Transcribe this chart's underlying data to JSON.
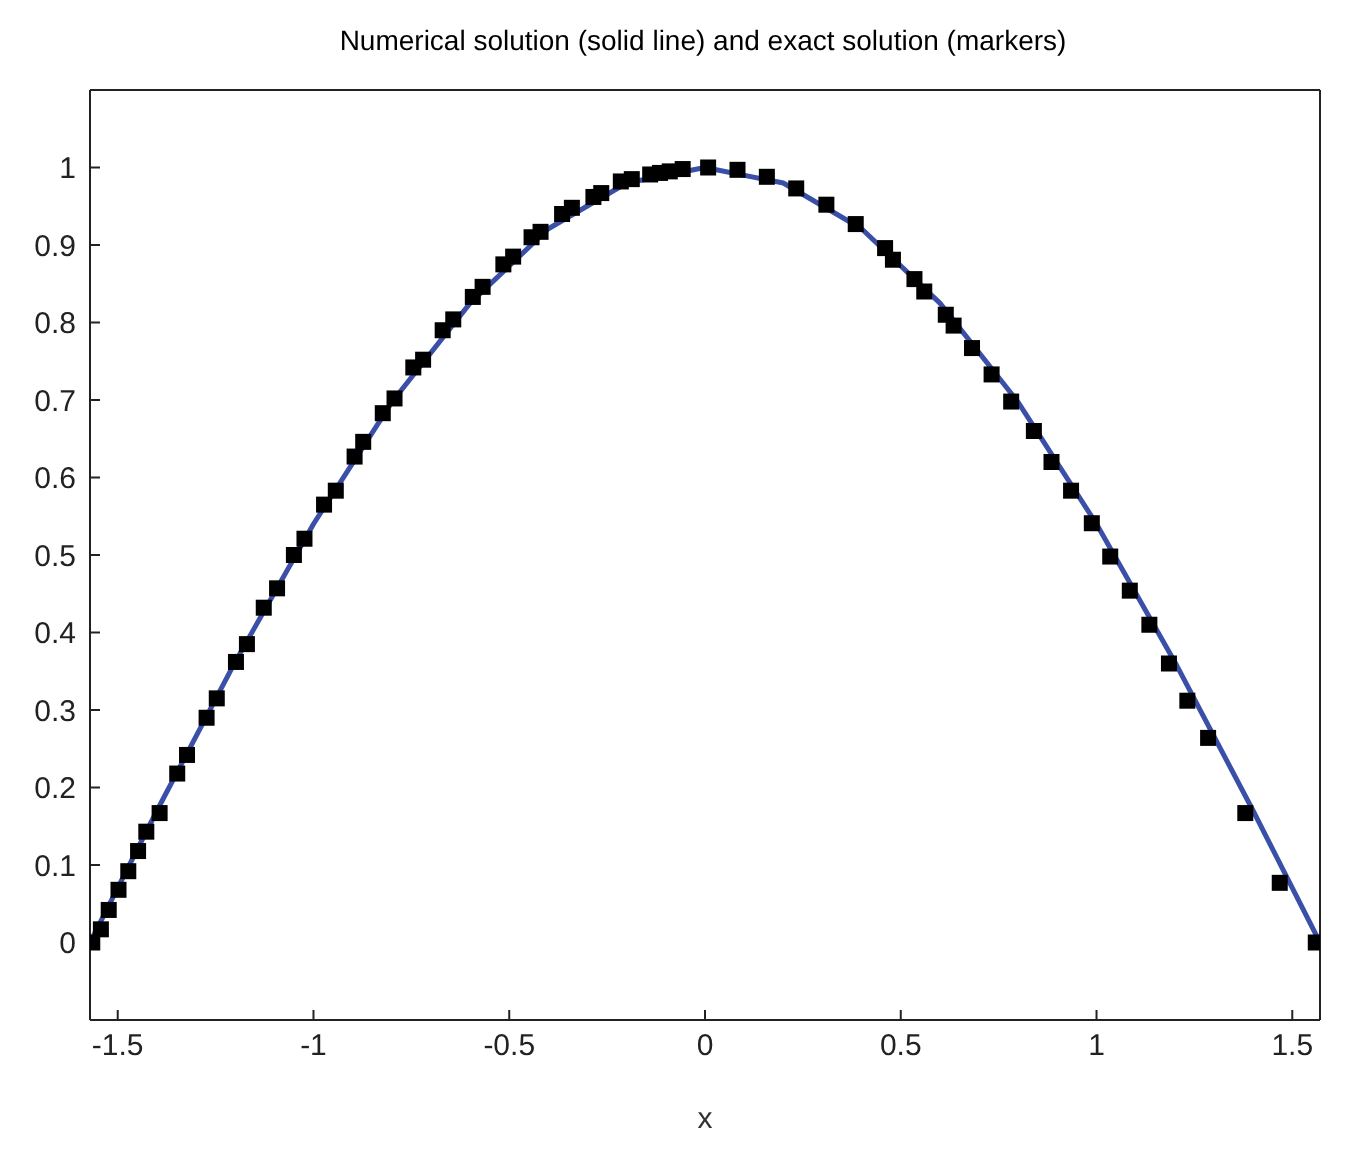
{
  "chart_data": {
    "type": "line",
    "title": "Numerical solution (solid line) and exact solution (markers)",
    "xlabel": "x",
    "xlim": [
      -1.5708,
      1.5708
    ],
    "xticks": [
      -1.5,
      -1,
      -0.5,
      0,
      0.5,
      1,
      1.5
    ],
    "ylim": [
      -0.1,
      1.1
    ],
    "yticks": [
      0,
      0.1,
      0.2,
      0.3,
      0.4,
      0.5,
      0.6,
      0.7,
      0.8,
      0.9,
      1
    ],
    "series": [
      {
        "color": "#3a4fa8",
        "line_style": "solid",
        "x": [
          -1.5708,
          -1.4,
          -1.2,
          -1.0,
          -0.8,
          -0.6,
          -0.4,
          -0.2,
          0,
          0.2,
          0.4,
          0.6,
          0.8,
          1.0,
          1.2,
          1.4,
          1.5708
        ],
        "values": [
          0,
          0.17,
          0.362,
          0.54,
          0.697,
          0.825,
          0.921,
          0.98,
          1,
          0.98,
          0.921,
          0.825,
          0.697,
          0.54,
          0.362,
          0.17,
          0
        ]
      },
      {
        "type": "scatter",
        "color": "#000000",
        "marker": "square",
        "x": [
          -1.565,
          -1.543,
          -1.523,
          -1.498,
          -1.473,
          -1.448,
          -1.427,
          -1.393,
          -1.348,
          -1.323,
          -1.273,
          -1.247,
          -1.198,
          -1.17,
          -1.127,
          -1.093,
          -1.05,
          -1.023,
          -0.973,
          -0.943,
          -0.895,
          -0.873,
          -0.823,
          -0.793,
          -0.745,
          -0.72,
          -0.67,
          -0.643,
          -0.593,
          -0.568,
          -0.515,
          -0.49,
          -0.443,
          -0.42,
          -0.365,
          -0.34,
          -0.285,
          -0.265,
          -0.215,
          -0.187,
          -0.14,
          -0.115,
          -0.09,
          -0.057,
          0.008,
          0.083,
          0.158,
          0.233,
          0.31,
          0.385,
          0.46,
          0.48,
          0.535,
          0.56,
          0.615,
          0.635,
          0.682,
          0.732,
          0.782,
          0.84,
          0.885,
          0.935,
          0.988,
          1.035,
          1.085,
          1.135,
          1.185,
          1.232,
          1.285,
          1.38,
          1.468,
          1.56
        ],
        "values": [
          0,
          0.017,
          0.042,
          0.068,
          0.092,
          0.118,
          0.143,
          0.167,
          0.218,
          0.242,
          0.29,
          0.315,
          0.362,
          0.385,
          0.432,
          0.457,
          0.5,
          0.521,
          0.565,
          0.583,
          0.627,
          0.646,
          0.683,
          0.702,
          0.742,
          0.752,
          0.79,
          0.804,
          0.833,
          0.846,
          0.875,
          0.885,
          0.91,
          0.917,
          0.94,
          0.948,
          0.962,
          0.967,
          0.982,
          0.985,
          0.991,
          0.993,
          0.995,
          0.998,
          1,
          0.997,
          0.988,
          0.973,
          0.952,
          0.927,
          0.896,
          0.881,
          0.856,
          0.84,
          0.81,
          0.796,
          0.767,
          0.733,
          0.698,
          0.66,
          0.62,
          0.583,
          0.541,
          0.498,
          0.454,
          0.41,
          0.36,
          0.312,
          0.264,
          0.167,
          0.077,
          0
        ]
      }
    ]
  }
}
